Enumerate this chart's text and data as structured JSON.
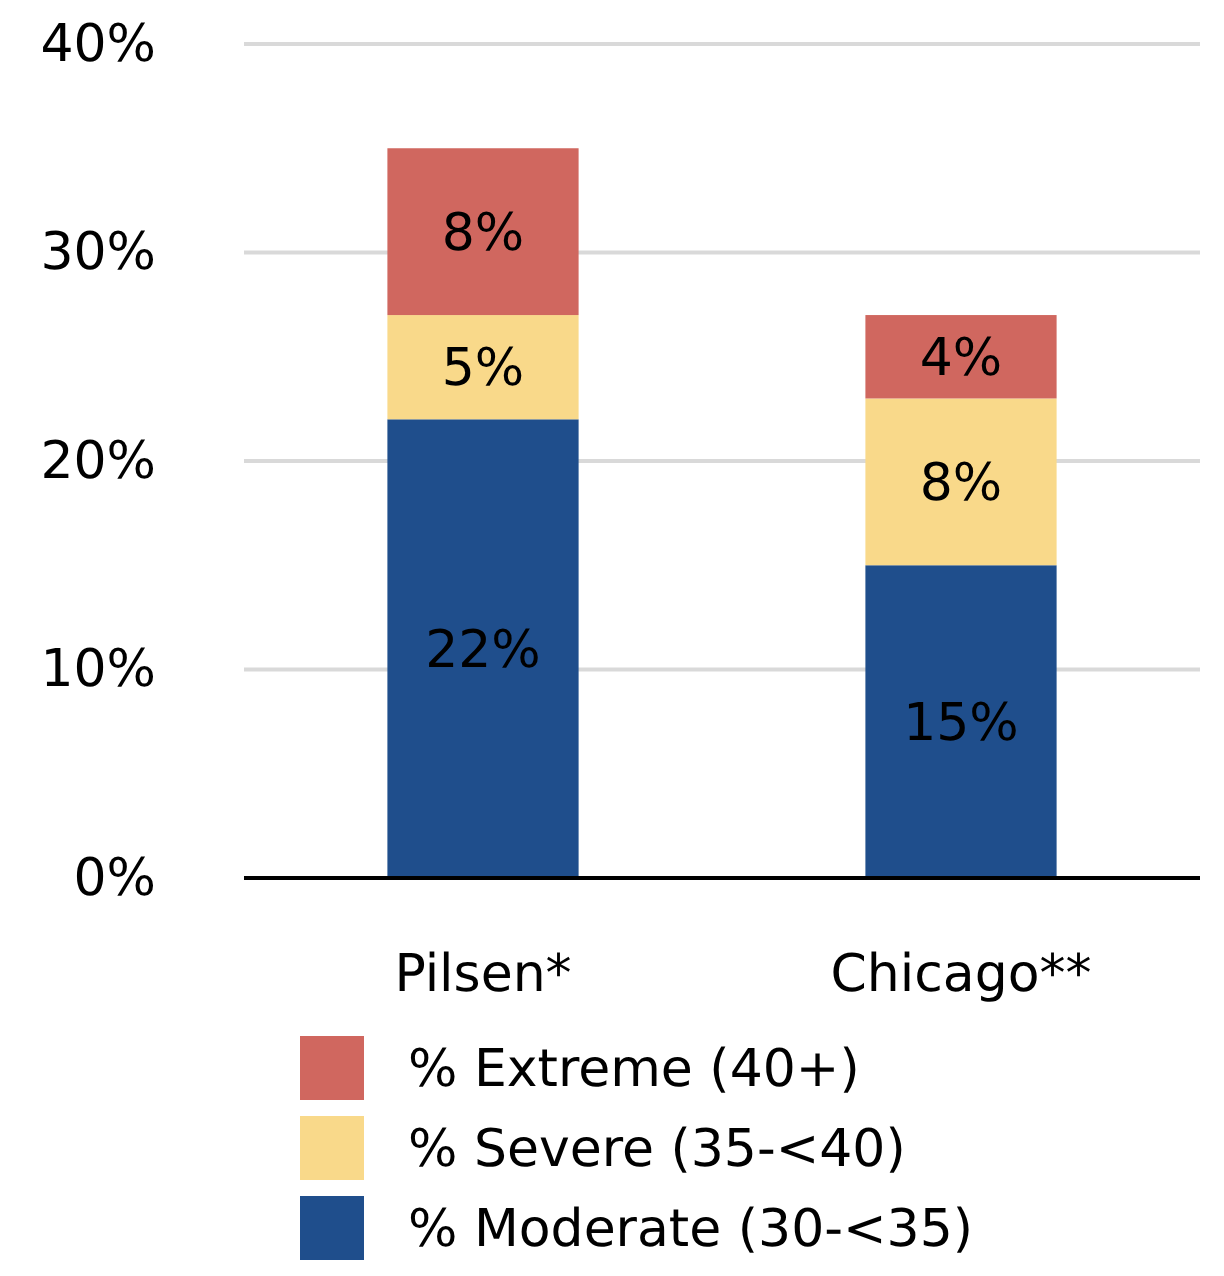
{
  "chart_data": {
    "type": "bar",
    "stacked": true,
    "categories": [
      "Pilsen*",
      "Chicago**"
    ],
    "series": [
      {
        "name": "% Moderate (30-<35)",
        "color": "#1f4e8c",
        "values": [
          22,
          15
        ],
        "value_labels": [
          "22%",
          "15%"
        ]
      },
      {
        "name": "% Severe (35-<40)",
        "color": "#f9d98a",
        "values": [
          5,
          8
        ],
        "value_labels": [
          "5%",
          "8%"
        ]
      },
      {
        "name": "% Extreme (40+)",
        "color": "#d0675f",
        "values": [
          8,
          4
        ],
        "value_labels": [
          "8%",
          "4%"
        ]
      }
    ],
    "ylim": [
      0,
      40
    ],
    "yticks": [
      {
        "value": 0,
        "label": "0%"
      },
      {
        "value": 10,
        "label": "10%"
      },
      {
        "value": 20,
        "label": "20%"
      },
      {
        "value": 30,
        "label": "30%"
      },
      {
        "value": 40,
        "label": "40%"
      }
    ],
    "grid": "y",
    "legend": "bottom"
  }
}
